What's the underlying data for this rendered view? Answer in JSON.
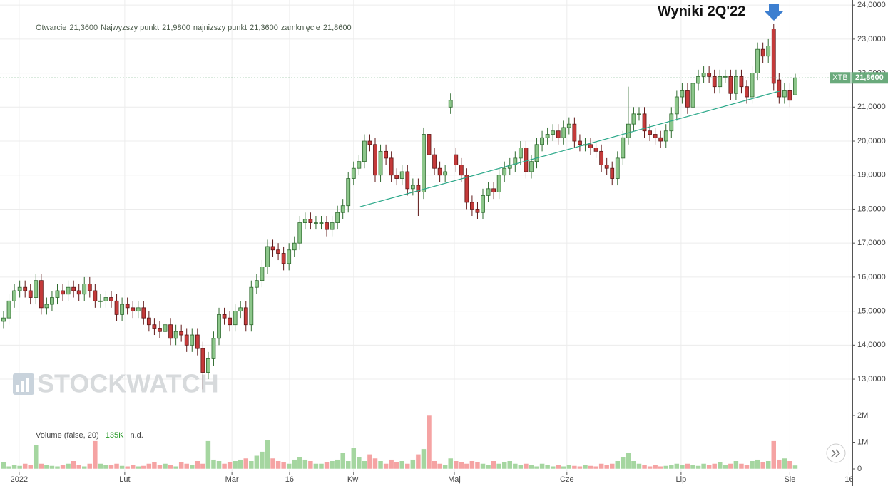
{
  "chart_data": {
    "type": "candlestick",
    "ohlc_legend": [
      {
        "name": "Otwarcie",
        "value": 21.36,
        "label": "21,3600"
      },
      {
        "name": "Najwyzszy punkt",
        "value": 21.98,
        "label": "21,9800"
      },
      {
        "name": "najnizszy punkt",
        "value": 21.36,
        "label": "21,3600"
      },
      {
        "name": "zamknięcie",
        "value": 21.86,
        "label": "21,8600"
      }
    ],
    "price_tag": {
      "name": "XTB",
      "value": 21.86,
      "label": "21,8600",
      "color": "#6aaa7c"
    },
    "annotation": "Wyniki 2Q'22",
    "watermark": "STOCKWATCH",
    "open": [
      14.7,
      14.8,
      15.3,
      15.6,
      15.7,
      15.6,
      15.4,
      15.9,
      15.1,
      15.2,
      15.4,
      15.6,
      15.5,
      15.7,
      15.6,
      15.5,
      15.8,
      15.6,
      15.3,
      15.3,
      15.4,
      15.3,
      14.9,
      15.2,
      15.1,
      15.0,
      15.1,
      14.8,
      14.6,
      14.5,
      14.4,
      14.6,
      14.2,
      14.4,
      14.3,
      14.0,
      14.3,
      13.9,
      13.2,
      13.6,
      14.2,
      14.9,
      14.8,
      14.6,
      15.0,
      15.1,
      14.6,
      15.7,
      15.9,
      16.3,
      16.9,
      16.8,
      16.7,
      16.4,
      16.8,
      17.0,
      17.6,
      17.7,
      17.6,
      17.6,
      17.6,
      17.4,
      17.6,
      17.9,
      18.1,
      18.9,
      19.2,
      19.4,
      20.0,
      19.9,
      19.0,
      19.7,
      19.5,
      19.0,
      18.9,
      19.1,
      18.6,
      18.7,
      18.5,
      20.2,
      19.6,
      19.2,
      19.0,
      21.0,
      19.6,
      19.3,
      19.0,
      18.2,
      18.0,
      17.9,
      18.4,
      18.6,
      18.5,
      19.0,
      19.2,
      19.3,
      19.5,
      19.8,
      19.1,
      19.4,
      19.9,
      20.1,
      20.2,
      20.3,
      20.1,
      20.4,
      20.5,
      20.0,
      19.9,
      19.9,
      19.8,
      19.7,
      19.3,
      19.2,
      18.9,
      19.5,
      20.1,
      20.5,
      20.8,
      20.8,
      20.3,
      20.2,
      20.1,
      20.0,
      20.3,
      20.8,
      21.3,
      21.5,
      21.0,
      21.7,
      21.9,
      22.0,
      21.9,
      21.6,
      21.9,
      21.9,
      21.4,
      21.9,
      21.6,
      21.3,
      22.0,
      22.7,
      22.5,
      23.3,
      21.8,
      21.3,
      21.5,
      21.36
    ],
    "high": [
      15.0,
      15.5,
      15.8,
      15.9,
      15.9,
      15.8,
      16.1,
      16.1,
      15.4,
      15.6,
      15.8,
      15.8,
      15.9,
      15.9,
      15.8,
      16.0,
      16.0,
      15.8,
      15.5,
      15.6,
      15.6,
      15.5,
      15.4,
      15.4,
      15.3,
      15.3,
      15.3,
      15.0,
      14.8,
      14.7,
      14.8,
      14.8,
      14.6,
      14.6,
      14.5,
      14.5,
      14.5,
      14.1,
      13.8,
      14.4,
      15.1,
      15.1,
      15.0,
      15.2,
      15.3,
      15.3,
      15.9,
      16.1,
      16.5,
      17.1,
      17.1,
      17.0,
      16.9,
      17.0,
      17.2,
      17.8,
      17.9,
      17.9,
      17.8,
      17.8,
      17.8,
      17.8,
      18.1,
      18.3,
      19.1,
      19.4,
      19.6,
      20.2,
      20.2,
      20.1,
      19.9,
      19.9,
      19.7,
      19.2,
      19.3,
      19.3,
      18.9,
      18.9,
      20.4,
      20.4,
      19.8,
      19.4,
      19.3,
      21.4,
      19.8,
      19.5,
      19.2,
      18.4,
      18.2,
      18.6,
      18.8,
      18.8,
      19.2,
      19.4,
      19.5,
      19.7,
      20.0,
      20.0,
      19.6,
      20.1,
      20.3,
      20.4,
      20.5,
      20.5,
      20.6,
      20.7,
      20.7,
      20.2,
      20.1,
      20.1,
      20.0,
      19.9,
      19.5,
      19.4,
      19.7,
      20.3,
      21.6,
      21.0,
      21.0,
      21.0,
      20.5,
      20.4,
      20.3,
      20.5,
      21.0,
      21.5,
      21.7,
      21.7,
      21.9,
      22.1,
      22.2,
      22.2,
      22.1,
      22.1,
      22.1,
      22.1,
      22.1,
      22.1,
      21.8,
      22.2,
      22.9,
      22.9,
      23.0,
      23.45,
      22.0,
      21.7,
      21.7,
      21.98
    ],
    "low": [
      14.5,
      14.6,
      15.1,
      15.4,
      15.4,
      15.2,
      15.2,
      14.9,
      14.9,
      15.0,
      15.2,
      15.3,
      15.3,
      15.4,
      15.3,
      15.3,
      15.4,
      15.1,
      15.1,
      15.1,
      15.1,
      14.7,
      14.7,
      14.9,
      14.8,
      14.8,
      14.6,
      14.4,
      14.3,
      14.2,
      14.2,
      14.0,
      14.0,
      14.1,
      13.8,
      13.8,
      13.7,
      12.7,
      13.0,
      13.4,
      14.0,
      14.6,
      14.4,
      14.4,
      14.8,
      14.4,
      14.4,
      15.5,
      15.7,
      16.1,
      16.6,
      16.5,
      16.2,
      16.2,
      16.6,
      16.8,
      17.4,
      17.4,
      17.4,
      17.4,
      17.2,
      17.2,
      17.4,
      17.7,
      17.9,
      18.7,
      19.0,
      19.2,
      19.7,
      18.8,
      18.8,
      19.3,
      18.8,
      18.7,
      18.7,
      18.4,
      18.4,
      17.8,
      18.3,
      19.4,
      19.0,
      18.8,
      18.8,
      20.8,
      19.1,
      18.8,
      18.0,
      17.8,
      17.7,
      17.7,
      18.2,
      18.3,
      18.3,
      18.8,
      19.0,
      19.1,
      19.3,
      18.9,
      18.9,
      19.2,
      19.7,
      19.9,
      20.0,
      19.9,
      19.9,
      20.2,
      19.8,
      19.7,
      19.7,
      19.6,
      19.5,
      19.1,
      19.0,
      18.7,
      18.7,
      19.3,
      19.9,
      20.3,
      20.6,
      20.1,
      20.0,
      19.9,
      19.8,
      19.8,
      20.1,
      20.6,
      21.1,
      20.8,
      20.8,
      21.5,
      21.7,
      21.7,
      21.4,
      21.4,
      21.7,
      21.2,
      21.2,
      21.4,
      21.1,
      21.1,
      21.8,
      22.3,
      22.3,
      21.5,
      21.1,
      21.1,
      21.0,
      21.36
    ],
    "close": [
      14.8,
      15.3,
      15.6,
      15.7,
      15.6,
      15.4,
      15.9,
      15.1,
      15.2,
      15.4,
      15.6,
      15.5,
      15.7,
      15.6,
      15.5,
      15.8,
      15.6,
      15.3,
      15.3,
      15.4,
      15.3,
      14.9,
      15.2,
      15.1,
      15.0,
      15.1,
      14.8,
      14.6,
      14.5,
      14.4,
      14.6,
      14.2,
      14.4,
      14.3,
      14.0,
      14.3,
      13.9,
      13.2,
      13.6,
      14.2,
      14.9,
      14.8,
      14.6,
      15.0,
      15.1,
      14.6,
      15.7,
      15.9,
      16.3,
      16.9,
      16.8,
      16.7,
      16.4,
      16.8,
      17.0,
      17.6,
      17.7,
      17.6,
      17.6,
      17.6,
      17.4,
      17.6,
      17.9,
      18.1,
      18.9,
      19.2,
      19.4,
      20.0,
      19.9,
      19.0,
      19.7,
      19.5,
      19.0,
      18.9,
      19.1,
      18.6,
      18.7,
      18.5,
      20.2,
      19.6,
      19.2,
      19.0,
      19.1,
      21.2,
      19.3,
      19.0,
      18.2,
      18.0,
      17.9,
      18.4,
      18.6,
      18.5,
      19.0,
      19.2,
      19.3,
      19.5,
      19.8,
      19.1,
      19.4,
      19.9,
      20.1,
      20.2,
      20.3,
      20.1,
      20.4,
      20.5,
      20.0,
      19.9,
      19.9,
      19.8,
      19.7,
      19.3,
      19.2,
      18.9,
      19.5,
      20.1,
      20.5,
      20.8,
      20.8,
      20.3,
      20.2,
      20.1,
      20.0,
      20.3,
      20.8,
      21.3,
      21.5,
      21.0,
      21.7,
      21.9,
      22.0,
      21.9,
      21.6,
      21.9,
      21.9,
      21.4,
      21.9,
      21.6,
      21.3,
      22.0,
      22.7,
      22.5,
      22.8,
      21.7,
      21.3,
      21.5,
      21.2,
      21.86
    ],
    "up_color": "#8cc68a",
    "down_color": "#c43a3a",
    "xlim": [
      -0.66,
      157.6
    ],
    "xticks": [
      {
        "value": 2.9,
        "label": "2022"
      },
      {
        "value": 22.5,
        "label": "Lut"
      },
      {
        "value": 42.4,
        "label": "Mar"
      },
      {
        "value": 53.1,
        "label": "16"
      },
      {
        "value": 65.0,
        "label": "Kwi"
      },
      {
        "value": 83.7,
        "label": "Maj"
      },
      {
        "value": 104.6,
        "label": "Cze"
      },
      {
        "value": 125.8,
        "label": "Lip"
      },
      {
        "value": 146.0,
        "label": "Sie"
      },
      {
        "value": 157.0,
        "label": "16"
      }
    ],
    "ylim": [
      12.1,
      24.15
    ],
    "yticks": [
      {
        "value": 13,
        "label": "13,0000"
      },
      {
        "value": 14,
        "label": "14,0000"
      },
      {
        "value": 15,
        "label": "15,0000"
      },
      {
        "value": 16,
        "label": "16,0000"
      },
      {
        "value": 17,
        "label": "17,0000"
      },
      {
        "value": 18,
        "label": "18,0000"
      },
      {
        "value": 19,
        "label": "19,0000"
      },
      {
        "value": 20,
        "label": "20,0000"
      },
      {
        "value": 21,
        "label": "21,0000"
      },
      {
        "value": 22,
        "label": "22,0000"
      },
      {
        "value": 23,
        "label": "23,0000"
      },
      {
        "value": 24,
        "label": "24,0000"
      }
    ],
    "grid": true,
    "trendline": {
      "x": [
        66.2,
        144.1
      ],
      "values": [
        18.07,
        21.47
      ],
      "color": "#2aa889"
    },
    "volume": {
      "name": "Volume (false, 20)",
      "last": {
        "value": 135000,
        "label": "135K"
      },
      "status": "n.d.",
      "values": [
        250000,
        100000,
        150000,
        120000,
        200000,
        150000,
        900000,
        200000,
        150000,
        120000,
        100000,
        150000,
        200000,
        300000,
        150000,
        100000,
        200000,
        1050000,
        200000,
        150000,
        150000,
        200000,
        120000,
        100000,
        150000,
        100000,
        120000,
        200000,
        250000,
        150000,
        200000,
        150000,
        100000,
        250000,
        200000,
        150000,
        300000,
        200000,
        1050000,
        350000,
        300000,
        200000,
        250000,
        300000,
        350000,
        400000,
        300000,
        500000,
        650000,
        1100000,
        400000,
        300000,
        250000,
        200000,
        350000,
        450000,
        350000,
        300000,
        200000,
        200000,
        250000,
        300000,
        350000,
        600000,
        300000,
        800000,
        450000,
        300000,
        550000,
        400000,
        300000,
        200000,
        350000,
        250000,
        300000,
        200000,
        350000,
        550000,
        750000,
        2000000,
        300000,
        200000,
        150000,
        400000,
        300000,
        250000,
        200000,
        300000,
        250000,
        200000,
        150000,
        300000,
        200000,
        250000,
        300000,
        200000,
        150000,
        200000,
        150000,
        100000,
        200000,
        150000,
        100000,
        150000,
        100000,
        150000,
        120000,
        100000,
        150000,
        120000,
        100000,
        200000,
        150000,
        200000,
        300000,
        450000,
        600000,
        300000,
        200000,
        150000,
        100000,
        150000,
        100000,
        120000,
        150000,
        200000,
        150000,
        200000,
        150000,
        120000,
        200000,
        150000,
        200000,
        250000,
        150000,
        200000,
        300000,
        200000,
        150000,
        300000,
        350000,
        250000,
        300000,
        1050000,
        350000,
        400000,
        300000,
        135000
      ],
      "up_color": "#a5d6a0",
      "down_color": "#f5a3a3",
      "ylim": [
        -106667,
        2160000
      ],
      "yticks": [
        0,
        {
          "value": 1000000,
          "label": "1M"
        },
        {
          "value": 2000000,
          "label": "2M"
        }
      ]
    }
  }
}
